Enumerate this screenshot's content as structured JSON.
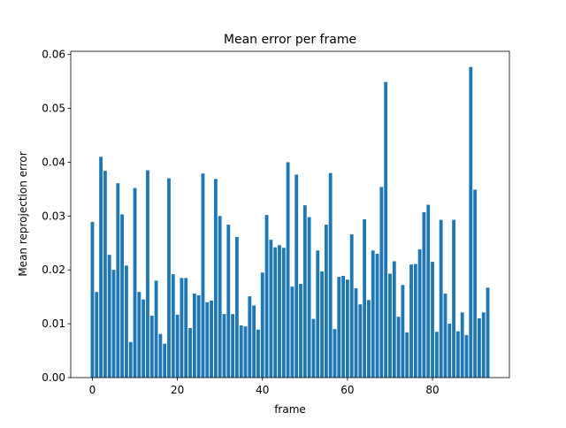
{
  "chart_data": {
    "type": "bar",
    "title": "Mean error per frame",
    "x_label": "frame",
    "y_label": "Mean reprojection error",
    "x": [
      0,
      1,
      2,
      3,
      4,
      5,
      6,
      7,
      8,
      9,
      10,
      11,
      12,
      13,
      14,
      15,
      16,
      17,
      18,
      19,
      20,
      21,
      22,
      23,
      24,
      25,
      26,
      27,
      28,
      29,
      30,
      31,
      32,
      33,
      34,
      35,
      36,
      37,
      38,
      39,
      40,
      41,
      42,
      43,
      44,
      45,
      46,
      47,
      48,
      49,
      50,
      51,
      52,
      53,
      54,
      55,
      56,
      57,
      58,
      59,
      60,
      61,
      62,
      63,
      64,
      65,
      66,
      67,
      68,
      69,
      70,
      71,
      72,
      73,
      74,
      75,
      76,
      77,
      78,
      79,
      80,
      81,
      82,
      83,
      84,
      85,
      86,
      87,
      88,
      89,
      90,
      91,
      92,
      93
    ],
    "values": [
      0.0289,
      0.0159,
      0.041,
      0.0384,
      0.0228,
      0.02,
      0.0361,
      0.0303,
      0.0208,
      0.0066,
      0.0352,
      0.0159,
      0.0145,
      0.0385,
      0.0115,
      0.018,
      0.0081,
      0.0063,
      0.037,
      0.0192,
      0.0117,
      0.0185,
      0.0185,
      0.0092,
      0.0156,
      0.0153,
      0.0379,
      0.014,
      0.0143,
      0.0369,
      0.03,
      0.0118,
      0.0284,
      0.0118,
      0.0261,
      0.0097,
      0.0095,
      0.0151,
      0.0134,
      0.0089,
      0.0195,
      0.0302,
      0.0256,
      0.0242,
      0.0246,
      0.0241,
      0.04,
      0.0169,
      0.0377,
      0.0174,
      0.032,
      0.0298,
      0.0109,
      0.0236,
      0.0197,
      0.0284,
      0.038,
      0.009,
      0.0187,
      0.0189,
      0.0182,
      0.0266,
      0.0166,
      0.0136,
      0.0294,
      0.0144,
      0.0236,
      0.023,
      0.0354,
      0.0549,
      0.0193,
      0.0216,
      0.0113,
      0.0172,
      0.0084,
      0.021,
      0.0211,
      0.0238,
      0.0307,
      0.0321,
      0.0215,
      0.0085,
      0.0293,
      0.0156,
      0.01,
      0.0293,
      0.0086,
      0.0121,
      0.0079,
      0.0577,
      0.0349,
      0.011,
      0.0121,
      0.0167
    ],
    "color": "#1f77b4",
    "xlim": [
      -5.09,
      98.09
    ],
    "xticks": [
      0,
      20,
      40,
      60,
      80
    ],
    "ylim": [
      0,
      0.0606
    ],
    "yticks": [
      {
        "value": 0,
        "label": "0.00"
      },
      {
        "value": 0.01,
        "label": "0.01"
      },
      {
        "value": 0.02,
        "label": "0.02"
      },
      {
        "value": 0.03,
        "label": "0.03"
      },
      {
        "value": 0.04,
        "label": "0.04"
      },
      {
        "value": 0.05,
        "label": "0.05"
      },
      {
        "value": 0.06,
        "label": "0.06"
      }
    ]
  }
}
